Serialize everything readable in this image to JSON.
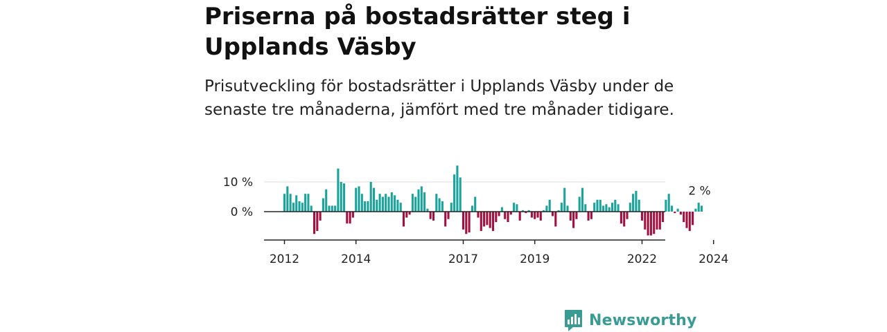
{
  "title": "Priserna på bostadsrätter steg i Upplands Väsby",
  "subtitle": "Prisutveckling för bostadsrätter i Upplands Väsby under de senaste tre månaderna, jämfört med tre månader tidigare.",
  "brand": {
    "name": "Newsworthy",
    "color": "#3a9b94",
    "icon": "newsworthy-logo-icon"
  },
  "colors": {
    "positive": "#1aa39a",
    "negative": "#a3103f",
    "grid": "#dddddd",
    "axis": "#222222"
  },
  "chart_data": {
    "type": "bar",
    "title": "",
    "xlabel": "",
    "ylabel": "",
    "unit": "%",
    "ylim": [
      -10,
      15
    ],
    "yticks": [
      {
        "value": 0,
        "label": "0 %"
      },
      {
        "value": 10,
        "label": "10 %"
      }
    ],
    "xticks": [
      {
        "year": 2012,
        "label": "2012"
      },
      {
        "year": 2014,
        "label": "2014"
      },
      {
        "year": 2017,
        "label": "2017"
      },
      {
        "year": 2019,
        "label": "2019"
      },
      {
        "year": 2022,
        "label": "2022"
      },
      {
        "year": 2024,
        "label": "2024"
      }
    ],
    "start": "2012-01",
    "frequency": "monthly",
    "last_value_label": "2 %",
    "values": [
      6,
      8.5,
      6,
      3,
      5.5,
      3.5,
      3,
      6,
      6,
      2,
      -7.5,
      -6.5,
      -3,
      4.5,
      7.5,
      2,
      2,
      2,
      14.5,
      10,
      9.5,
      -4,
      -4,
      -2,
      8,
      8.5,
      6,
      3.5,
      3.5,
      10,
      8,
      4,
      6,
      5,
      6,
      5,
      6.5,
      5.5,
      4,
      3,
      -5,
      -2,
      -1,
      6,
      5,
      7.5,
      8.5,
      6.5,
      1,
      -2.5,
      -3,
      6,
      4.5,
      3.5,
      -5,
      -2.5,
      3,
      12.5,
      15.5,
      11.5,
      -6,
      -7.5,
      -7,
      2,
      5,
      -2,
      -6.5,
      -5,
      -4.5,
      -5.5,
      -6.5,
      -3.5,
      -1.5,
      1.5,
      -2.5,
      -3.5,
      -1,
      3,
      2.5,
      -3,
      0.5,
      -0.5,
      0.5,
      -2,
      -2.5,
      -2,
      -3,
      0.5,
      2,
      4,
      -1.5,
      -5,
      0.5,
      3,
      8,
      2,
      -3,
      -5.5,
      -2.5,
      5,
      8,
      2.5,
      -3,
      -2.5,
      3,
      4,
      4,
      2,
      2.5,
      1.5,
      3,
      4,
      2.5,
      -4,
      -5,
      -2.5,
      3,
      6,
      7,
      4,
      -3,
      -6,
      -8,
      -8,
      -7.5,
      -6,
      -6,
      -3.5,
      4,
      6,
      2,
      -0.5,
      1,
      -1,
      -3.5,
      -5.5,
      -6.5,
      -4.5,
      1,
      3,
      2
    ]
  }
}
